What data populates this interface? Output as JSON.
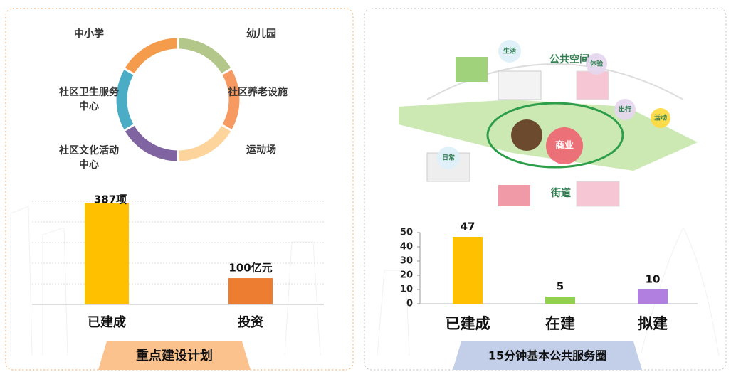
{
  "chart_data": [
    {
      "type": "pie",
      "categories": [
        "幼儿园",
        "社区养老设施",
        "运动场",
        "社区文化活动中心",
        "社区卫生服务中心",
        "中小学"
      ],
      "values": [
        1,
        1,
        1,
        1,
        1,
        1
      ],
      "colors": [
        "#b3c78a",
        "#f79a62",
        "#fdd49b",
        "#8064a2",
        "#4bacc6",
        "#f59b4c"
      ]
    },
    {
      "type": "bar",
      "title": "重点建设计划",
      "categories": [
        "已建成",
        "投资"
      ],
      "values": [
        387,
        100
      ],
      "value_labels": [
        "387项",
        "100亿元"
      ],
      "colors": [
        "#ffc000",
        "#ed7d31"
      ]
    },
    {
      "type": "bar",
      "title": "15分钟基本公共服务圈",
      "categories": [
        "已建成",
        "在建",
        "拟建"
      ],
      "values": [
        47,
        5,
        10
      ],
      "colors": [
        "#ffc000",
        "#92d050",
        "#b07fe0"
      ],
      "ylim": [
        0,
        50
      ],
      "yticks": [
        0,
        10,
        20,
        30,
        40,
        50
      ]
    }
  ],
  "illustration": {
    "labels": [
      "生活",
      "公共空间",
      "体验",
      "出行",
      "活动",
      "商业",
      "日常",
      "街道"
    ]
  }
}
